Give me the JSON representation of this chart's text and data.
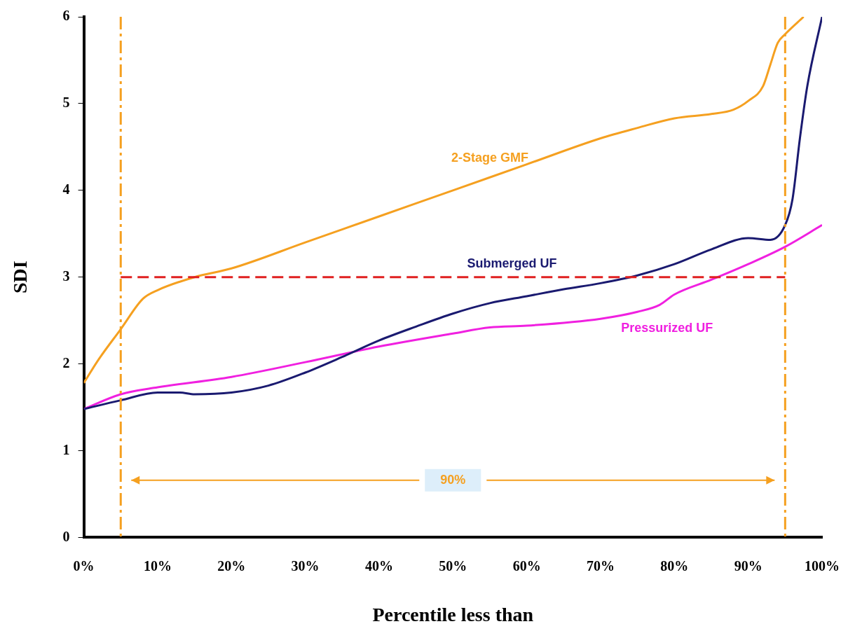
{
  "chart_data": {
    "type": "line",
    "xlabel": "Percentile less than",
    "ylabel": "SDI",
    "xlim": [
      0,
      100
    ],
    "ylim": [
      0,
      6
    ],
    "xticks": [
      {
        "value": 0,
        "label": "0%"
      },
      {
        "value": 10,
        "label": "10%"
      },
      {
        "value": 20,
        "label": "20%"
      },
      {
        "value": 30,
        "label": "30%"
      },
      {
        "value": 40,
        "label": "40%"
      },
      {
        "value": 50,
        "label": "50%"
      },
      {
        "value": 60,
        "label": "60%"
      },
      {
        "value": 70,
        "label": "70%"
      },
      {
        "value": 80,
        "label": "80%"
      },
      {
        "value": 90,
        "label": "90%"
      },
      {
        "value": 100,
        "label": "100%"
      }
    ],
    "yticks": [
      0,
      1,
      2,
      3,
      4,
      5,
      6
    ],
    "grid": false,
    "legend": false,
    "marker": "none",
    "line_style": "solid",
    "series": [
      {
        "name": "2-Stage GMF",
        "color": "#f5a020",
        "x": [
          0,
          2,
          5,
          8,
          10,
          15,
          20,
          30,
          40,
          50,
          60,
          70,
          75,
          80,
          85,
          88,
          90,
          92,
          93,
          94,
          95,
          97.5
        ],
        "values": [
          1.78,
          2.05,
          2.4,
          2.75,
          2.85,
          3.0,
          3.1,
          3.4,
          3.7,
          4.0,
          4.3,
          4.6,
          4.72,
          4.83,
          4.88,
          4.93,
          5.03,
          5.2,
          5.45,
          5.7,
          5.8,
          6.0
        ]
      },
      {
        "name": "Submerged UF",
        "color": "#1a1a70",
        "x": [
          0,
          5,
          10,
          13,
          15,
          20,
          25,
          30,
          35,
          40,
          45,
          50,
          55,
          60,
          65,
          70,
          75,
          80,
          85,
          90,
          93,
          95,
          96,
          97,
          98,
          100
        ],
        "values": [
          1.48,
          1.58,
          1.67,
          1.67,
          1.65,
          1.67,
          1.75,
          1.9,
          2.08,
          2.27,
          2.43,
          2.58,
          2.7,
          2.78,
          2.86,
          2.93,
          3.02,
          3.15,
          3.32,
          3.45,
          3.43,
          3.6,
          3.9,
          4.6,
          5.2,
          6.0
        ]
      },
      {
        "name": "Pressurized UF",
        "color": "#f020e0",
        "x": [
          0,
          5,
          10,
          20,
          30,
          40,
          50,
          55,
          60,
          70,
          75,
          78,
          80,
          85,
          90,
          95,
          100
        ],
        "values": [
          1.48,
          1.65,
          1.73,
          1.85,
          2.02,
          2.2,
          2.35,
          2.42,
          2.44,
          2.52,
          2.6,
          2.68,
          2.8,
          2.97,
          3.15,
          3.35,
          3.6
        ]
      }
    ],
    "ref_lines": [
      {
        "axis": "y",
        "value": 3,
        "color": "#e02020",
        "line_style": "dashed"
      },
      {
        "axis": "x",
        "value": 5,
        "color": "#f5a020",
        "line_style": "dashed"
      },
      {
        "axis": "x",
        "value": 95,
        "color": "#f5a020",
        "line_style": "dashed"
      }
    ],
    "annotations": [
      "90%"
    ]
  }
}
